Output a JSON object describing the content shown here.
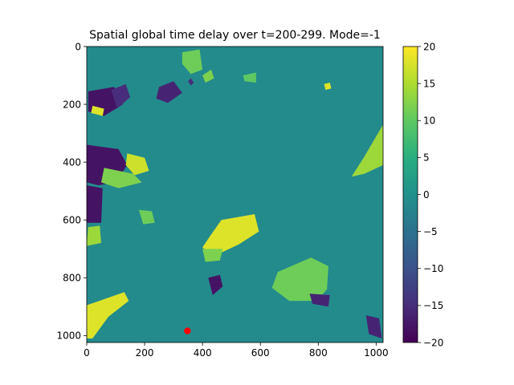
{
  "chart_data": {
    "type": "heatmap",
    "title": "Spatial global time delay over t=200-299. Mode=-1",
    "xlabel": "",
    "ylabel": "",
    "xlim": [
      0,
      1024
    ],
    "ylim": [
      1024,
      0
    ],
    "x_ticks": [
      "0",
      "200",
      "400",
      "600",
      "800",
      "1000"
    ],
    "y_ticks": [
      "0",
      "200",
      "400",
      "600",
      "800",
      "1000"
    ],
    "colormap": "viridis",
    "colorbar": {
      "range": [
        -20,
        20
      ],
      "ticks": [
        "20",
        "15",
        "10",
        "5",
        "0",
        "−5",
        "−10",
        "−15",
        "−20"
      ]
    },
    "background_value": -1,
    "marker": {
      "x": 348,
      "y": 984,
      "color": "#ff0000"
    },
    "regions": [
      {
        "label": "top-left dark block",
        "value": -18,
        "points": [
          [
            5,
            155
          ],
          [
            95,
            140
          ],
          [
            125,
            200
          ],
          [
            60,
            240
          ],
          [
            5,
            225
          ]
        ]
      },
      {
        "label": "top-left dark streaks",
        "value": -15,
        "points": [
          [
            85,
            150
          ],
          [
            135,
            130
          ],
          [
            150,
            175
          ],
          [
            105,
            215
          ]
        ]
      },
      {
        "label": "top-left yellow edge",
        "value": 18,
        "points": [
          [
            20,
            205
          ],
          [
            60,
            215
          ],
          [
            55,
            240
          ],
          [
            15,
            230
          ]
        ]
      },
      {
        "label": "left dark block",
        "value": -18,
        "points": [
          [
            0,
            340
          ],
          [
            110,
            355
          ],
          [
            140,
            410
          ],
          [
            100,
            470
          ],
          [
            40,
            480
          ],
          [
            0,
            470
          ]
        ]
      },
      {
        "label": "left mid dark",
        "value": -18,
        "points": [
          [
            0,
            480
          ],
          [
            55,
            490
          ],
          [
            50,
            610
          ],
          [
            0,
            610
          ]
        ]
      },
      {
        "label": "left yellow patch",
        "value": 17,
        "points": [
          [
            140,
            370
          ],
          [
            200,
            385
          ],
          [
            215,
            430
          ],
          [
            165,
            445
          ],
          [
            135,
            410
          ]
        ]
      },
      {
        "label": "left green bands",
        "value": 12,
        "points": [
          [
            60,
            420
          ],
          [
            160,
            440
          ],
          [
            190,
            470
          ],
          [
            110,
            490
          ],
          [
            50,
            470
          ]
        ]
      },
      {
        "label": "left lime spot",
        "value": 14,
        "points": [
          [
            5,
            625
          ],
          [
            45,
            620
          ],
          [
            50,
            680
          ],
          [
            0,
            690
          ]
        ]
      },
      {
        "label": "center-left green",
        "value": 11,
        "points": [
          [
            180,
            565
          ],
          [
            225,
            570
          ],
          [
            235,
            610
          ],
          [
            195,
            615
          ]
        ]
      },
      {
        "label": "center yellow stripes",
        "value": 18,
        "points": [
          [
            465,
            600
          ],
          [
            580,
            580
          ],
          [
            595,
            640
          ],
          [
            525,
            685
          ],
          [
            440,
            725
          ],
          [
            400,
            695
          ],
          [
            430,
            650
          ]
        ]
      },
      {
        "label": "center green patch",
        "value": 12,
        "points": [
          [
            400,
            700
          ],
          [
            470,
            700
          ],
          [
            460,
            740
          ],
          [
            410,
            745
          ]
        ]
      },
      {
        "label": "center dark spot",
        "value": -18,
        "points": [
          [
            420,
            800
          ],
          [
            460,
            790
          ],
          [
            470,
            830
          ],
          [
            435,
            860
          ]
        ]
      },
      {
        "label": "bottom-left yellow",
        "value": 18,
        "points": [
          [
            0,
            895
          ],
          [
            130,
            850
          ],
          [
            145,
            880
          ],
          [
            75,
            935
          ],
          [
            20,
            1010
          ],
          [
            0,
            1010
          ]
        ]
      },
      {
        "label": "bottom-right green patch",
        "value": 11,
        "points": [
          [
            660,
            780
          ],
          [
            775,
            730
          ],
          [
            835,
            760
          ],
          [
            830,
            840
          ],
          [
            795,
            880
          ],
          [
            700,
            880
          ],
          [
            640,
            835
          ]
        ]
      },
      {
        "label": "bottom-right dark",
        "value": -16,
        "points": [
          [
            770,
            855
          ],
          [
            840,
            860
          ],
          [
            835,
            900
          ],
          [
            780,
            890
          ]
        ]
      },
      {
        "label": "bottom-right dark corner",
        "value": -16,
        "points": [
          [
            965,
            930
          ],
          [
            1010,
            940
          ],
          [
            1020,
            1010
          ],
          [
            975,
            995
          ]
        ]
      },
      {
        "label": "right lime band",
        "value": 14,
        "points": [
          [
            1024,
            270
          ],
          [
            1024,
            410
          ],
          [
            960,
            440
          ],
          [
            915,
            450
          ],
          [
            960,
            380
          ]
        ]
      },
      {
        "label": "top green streak",
        "value": 11,
        "points": [
          [
            330,
            20
          ],
          [
            390,
            10
          ],
          [
            400,
            80
          ],
          [
            360,
            95
          ],
          [
            330,
            60
          ]
        ]
      },
      {
        "label": "top light green",
        "value": 12,
        "points": [
          [
            400,
            100
          ],
          [
            430,
            80
          ],
          [
            440,
            110
          ],
          [
            410,
            125
          ]
        ]
      },
      {
        "label": "top right green",
        "value": 10,
        "points": [
          [
            540,
            100
          ],
          [
            585,
            90
          ],
          [
            585,
            125
          ],
          [
            545,
            120
          ]
        ]
      },
      {
        "label": "top dark streaks",
        "value": -16,
        "points": [
          [
            250,
            140
          ],
          [
            300,
            120
          ],
          [
            330,
            160
          ],
          [
            280,
            195
          ],
          [
            240,
            180
          ]
        ]
      },
      {
        "label": "top yellow dots",
        "value": 18,
        "points": [
          [
            820,
            130
          ],
          [
            840,
            125
          ],
          [
            845,
            145
          ],
          [
            825,
            150
          ]
        ]
      },
      {
        "label": "center dark ring",
        "value": -15,
        "points": [
          [
            350,
            120
          ],
          [
            360,
            110
          ],
          [
            370,
            125
          ],
          [
            360,
            135
          ]
        ]
      }
    ]
  }
}
